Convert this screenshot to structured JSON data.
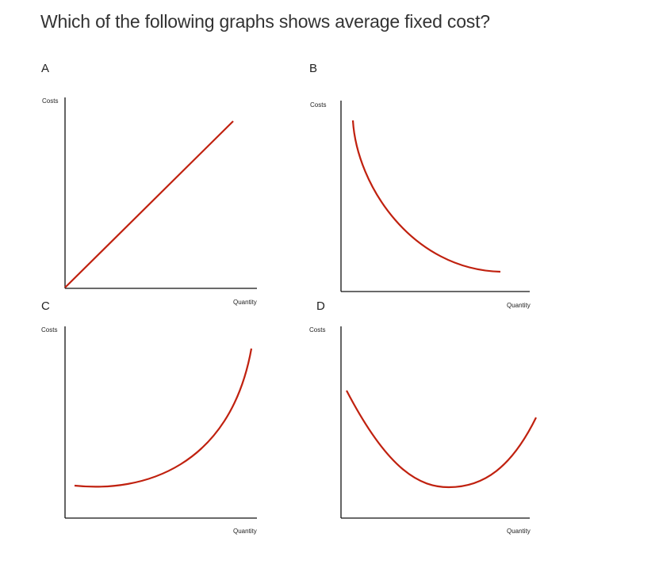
{
  "question": {
    "text": "Which of the following graphs shows average fixed cost?"
  },
  "colors": {
    "curve": "#c0210f",
    "axis": "#111111"
  },
  "chart_data": [
    {
      "type": "line",
      "option": "A",
      "ylabel": "Costs",
      "xlabel": "Quantity",
      "shape": "straight line rising from origin",
      "x": [
        0,
        1
      ],
      "y": [
        0,
        1
      ]
    },
    {
      "type": "line",
      "option": "B",
      "ylabel": "Costs",
      "xlabel": "Quantity",
      "shape": "downward-sloping curve flattening out",
      "x": [
        0.06,
        0.25,
        0.5,
        0.75,
        0.97
      ],
      "y": [
        0.89,
        0.55,
        0.25,
        0.12,
        0.08
      ]
    },
    {
      "type": "line",
      "option": "C",
      "ylabel": "Costs",
      "xlabel": "Quantity",
      "shape": "upward-sloping curve rising steeply",
      "x": [
        0.05,
        0.25,
        0.5,
        0.75,
        0.96
      ],
      "y": [
        0.18,
        0.17,
        0.28,
        0.55,
        0.95
      ]
    },
    {
      "type": "line",
      "option": "D",
      "ylabel": "Costs",
      "xlabel": "Quantity",
      "shape": "U-shaped curve",
      "x": [
        0.03,
        0.25,
        0.56,
        0.8,
        0.99
      ],
      "y": [
        0.68,
        0.35,
        0.17,
        0.3,
        0.54
      ]
    }
  ]
}
